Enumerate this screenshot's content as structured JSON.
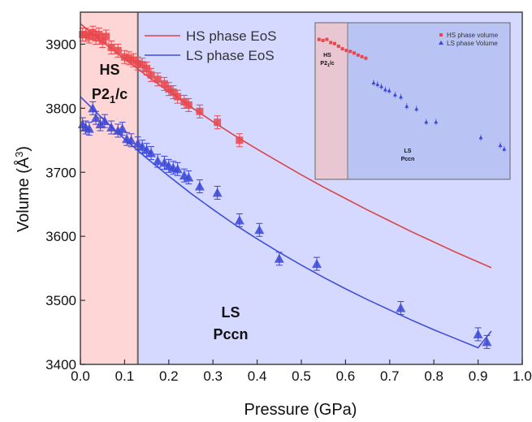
{
  "chart_data": [
    {
      "type": "scatter",
      "xlabel": "Pressure (GPa)",
      "ylabel": "Volume (Å",
      "ylabel_sup": "3",
      "ylabel_end": ")",
      "xlim": [
        0.0,
        1.0
      ],
      "ylim": [
        3400,
        3950
      ],
      "x_ticks": [
        "0.0",
        "0.1",
        "0.2",
        "0.3",
        "0.4",
        "0.5",
        "0.6",
        "0.7",
        "0.8",
        "0.9",
        "1.0"
      ],
      "y_ticks": [
        "3400",
        "3500",
        "3600",
        "3700",
        "3800",
        "3900"
      ],
      "regions": [
        {
          "name": "HS phase",
          "label_line1": "HS",
          "label_line2_main": "P2",
          "label_line2_sub": "1",
          "label_line2_end": "/c",
          "x_range": [
            0.0,
            0.13
          ],
          "color": "#ffd6d6"
        },
        {
          "name": "LS phase",
          "label_line1": "LS",
          "label_line2": "Pccn",
          "x_range": [
            0.13,
            1.0
          ],
          "color": "#d6d9ff"
        }
      ],
      "legend": [
        "HS phase EoS",
        "LS phase EoS"
      ],
      "series": [
        {
          "name": "HS phase EoS",
          "kind": "line",
          "color": "#d9454a",
          "x": [
            0.0,
            0.05,
            0.1,
            0.15,
            0.2,
            0.25,
            0.3,
            0.35,
            0.4,
            0.45,
            0.5,
            0.55,
            0.6,
            0.65,
            0.7,
            0.75,
            0.8,
            0.85,
            0.9,
            0.93
          ],
          "y": [
            3932,
            3904,
            3877,
            3851,
            3826,
            3802,
            3779,
            3757,
            3736,
            3716,
            3696,
            3677,
            3659,
            3641,
            3624,
            3607,
            3591,
            3575,
            3560,
            3551
          ]
        },
        {
          "name": "LS phase EoS",
          "kind": "line",
          "color": "#3f4fd8",
          "x": [
            0.0,
            0.05,
            0.1,
            0.15,
            0.2,
            0.25,
            0.3,
            0.35,
            0.4,
            0.45,
            0.5,
            0.55,
            0.6,
            0.65,
            0.7,
            0.75,
            0.8,
            0.85,
            0.9,
            0.93
          ],
          "y": [
            3818,
            3784,
            3752,
            3722,
            3694,
            3667,
            3642,
            3618,
            3596,
            3575,
            3555,
            3536,
            3518,
            3501,
            3485,
            3469,
            3454,
            3440,
            3426,
            3452
          ]
        },
        {
          "name": "HS phase volume",
          "kind": "points",
          "marker": "square",
          "color": "#e8474c",
          "x": [
            0.005,
            0.012,
            0.02,
            0.028,
            0.035,
            0.042,
            0.05,
            0.058,
            0.07,
            0.085,
            0.1,
            0.11,
            0.12,
            0.13,
            0.14,
            0.15,
            0.16,
            0.175,
            0.19,
            0.2,
            0.21,
            0.22,
            0.235,
            0.245,
            0.27,
            0.31,
            0.36
          ],
          "y": [
            3915,
            3915,
            3912,
            3918,
            3910,
            3915,
            3905,
            3912,
            3895,
            3890,
            3880,
            3878,
            3875,
            3870,
            3868,
            3862,
            3852,
            3845,
            3838,
            3830,
            3825,
            3818,
            3810,
            3805,
            3795,
            3778,
            3750
          ]
        },
        {
          "name": "LS phase volume",
          "kind": "points",
          "marker": "triangle",
          "color": "#3a46d6",
          "x": [
            0.005,
            0.012,
            0.02,
            0.028,
            0.035,
            0.045,
            0.055,
            0.07,
            0.085,
            0.095,
            0.105,
            0.115,
            0.13,
            0.14,
            0.15,
            0.16,
            0.175,
            0.19,
            0.2,
            0.21,
            0.22,
            0.235,
            0.245,
            0.27,
            0.31,
            0.36,
            0.405,
            0.45,
            0.535,
            0.725,
            0.9,
            0.92
          ],
          "y": [
            3775,
            3770,
            3768,
            3800,
            3785,
            3775,
            3780,
            3770,
            3765,
            3768,
            3752,
            3750,
            3745,
            3740,
            3735,
            3730,
            3718,
            3715,
            3710,
            3707,
            3705,
            3695,
            3692,
            3678,
            3668,
            3625,
            3610,
            3565,
            3557,
            3488,
            3447,
            3435
          ]
        }
      ]
    },
    {
      "type": "scatter",
      "role": "inset",
      "regions": [
        {
          "label_line1": "HS",
          "label_line2_main": "P2",
          "label_line2_sub": "1",
          "label_line2_end": "/c",
          "color": "#e8c6d2"
        },
        {
          "label_line1": "LS",
          "label_line2": "Pccn",
          "color": "#b9c4f5"
        }
      ],
      "legend": [
        "HS phase volume",
        "LS phase Volume"
      ],
      "series": [
        {
          "name": "HS phase volume",
          "marker": "square",
          "color": "#e8474c",
          "x": [
            0.02,
            0.04,
            0.06,
            0.08,
            0.1,
            0.12,
            0.14,
            0.16,
            0.18,
            0.2,
            0.22,
            0.24,
            0.26
          ],
          "y": [
            3918,
            3916,
            3918,
            3912,
            3910,
            3905,
            3900,
            3897,
            3895,
            3892,
            3888,
            3885,
            3882
          ]
        },
        {
          "name": "LS phase Volume",
          "marker": "triangle",
          "color": "#3a46d6",
          "x": [
            0.3,
            0.32,
            0.34,
            0.36,
            0.38,
            0.41,
            0.44,
            0.47,
            0.52,
            0.57,
            0.62,
            0.85,
            0.95,
            0.97
          ],
          "y": [
            3835,
            3832,
            3828,
            3822,
            3820,
            3812,
            3808,
            3790,
            3785,
            3760,
            3760,
            3730,
            3715,
            3708
          ]
        }
      ]
    }
  ]
}
